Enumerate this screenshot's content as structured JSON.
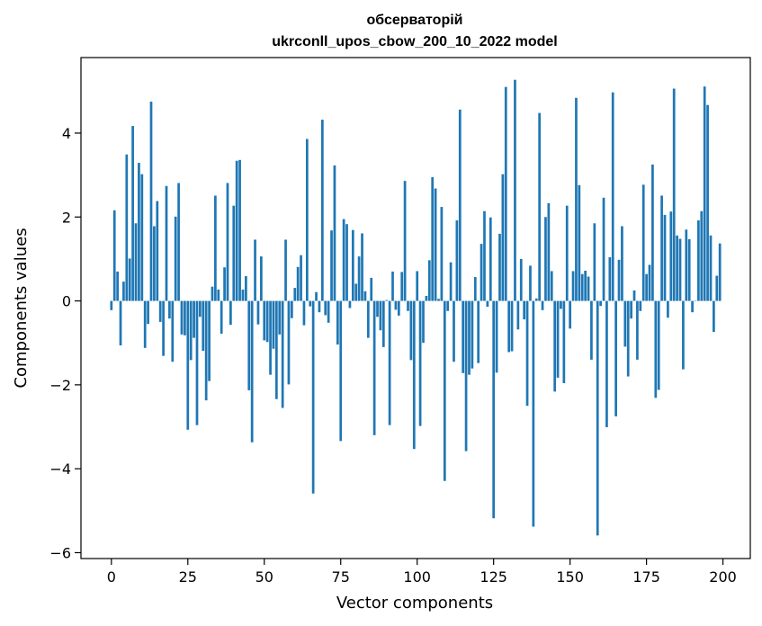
{
  "chart_data": {
    "type": "bar",
    "title_line1": "обсерваторій",
    "title_line2": "ukrconll_upos_cbow_200_10_2022 model",
    "xlabel": "Vector components",
    "ylabel": "Components values",
    "xlim": [
      -9.95,
      208.95
    ],
    "ylim": [
      -6.14,
      5.8
    ],
    "xticks": [
      0,
      25,
      50,
      75,
      100,
      125,
      150,
      175,
      200
    ],
    "yticks": [
      -6,
      -4,
      -2,
      0,
      2,
      4
    ],
    "ytick_labels": [
      "−6",
      "−4",
      "−2",
      "0",
      "2",
      "4"
    ],
    "grid": false,
    "legend": "none",
    "bar_color": "#1f77b4",
    "x": [
      0,
      1,
      2,
      3,
      4,
      5,
      6,
      7,
      8,
      9,
      10,
      11,
      12,
      13,
      14,
      15,
      16,
      17,
      18,
      19,
      20,
      21,
      22,
      23,
      24,
      25,
      26,
      27,
      28,
      29,
      30,
      31,
      32,
      33,
      34,
      35,
      36,
      37,
      38,
      39,
      40,
      41,
      42,
      43,
      44,
      45,
      46,
      47,
      48,
      49,
      50,
      51,
      52,
      53,
      54,
      55,
      56,
      57,
      58,
      59,
      60,
      61,
      62,
      63,
      64,
      65,
      66,
      67,
      68,
      69,
      70,
      71,
      72,
      73,
      74,
      75,
      76,
      77,
      78,
      79,
      80,
      81,
      82,
      83,
      84,
      85,
      86,
      87,
      88,
      89,
      90,
      91,
      92,
      93,
      94,
      95,
      96,
      97,
      98,
      99,
      100,
      101,
      102,
      103,
      104,
      105,
      106,
      107,
      108,
      109,
      110,
      111,
      112,
      113,
      114,
      115,
      116,
      117,
      118,
      119,
      120,
      121,
      122,
      123,
      124,
      125,
      126,
      127,
      128,
      129,
      130,
      131,
      132,
      133,
      134,
      135,
      136,
      137,
      138,
      139,
      140,
      141,
      142,
      143,
      144,
      145,
      146,
      147,
      148,
      149,
      150,
      151,
      152,
      153,
      154,
      155,
      156,
      157,
      158,
      159,
      160,
      161,
      162,
      163,
      164,
      165,
      166,
      167,
      168,
      169,
      170,
      171,
      172,
      173,
      174,
      175,
      176,
      177,
      178,
      179,
      180,
      181,
      182,
      183,
      184,
      185,
      186,
      187,
      188,
      189,
      190,
      191,
      192,
      193,
      194,
      195,
      196,
      197,
      198,
      199
    ],
    "values": [
      -0.22,
      2.16,
      0.7,
      -1.06,
      0.46,
      3.49,
      1.01,
      4.17,
      1.85,
      3.29,
      3.02,
      -1.12,
      -0.55,
      4.75,
      1.78,
      2.38,
      -0.5,
      -1.31,
      2.74,
      -0.42,
      -1.45,
      2.01,
      2.81,
      -0.8,
      -0.82,
      -3.07,
      -1.41,
      -0.88,
      -2.96,
      -0.38,
      -1.19,
      -2.37,
      -1.91,
      0.34,
      2.51,
      0.27,
      -0.78,
      0.8,
      2.81,
      -0.57,
      2.27,
      3.34,
      3.36,
      0.27,
      0.59,
      -2.13,
      -3.37,
      1.46,
      -0.56,
      1.06,
      -0.94,
      -0.98,
      -1.76,
      -1.14,
      -2.34,
      -0.8,
      -2.55,
      1.46,
      -1.99,
      -0.41,
      0.31,
      0.81,
      1.09,
      -0.58,
      3.86,
      -0.13,
      -4.59,
      0.21,
      -0.27,
      4.32,
      -0.34,
      -0.52,
      1.68,
      3.23,
      -1.04,
      -3.34,
      1.95,
      1.83,
      -0.17,
      1.69,
      0.41,
      1.06,
      1.61,
      0.23,
      -0.88,
      0.55,
      -3.2,
      -0.38,
      -0.7,
      -1.1,
      0.02,
      -2.96,
      0.7,
      -0.21,
      -0.35,
      0.69,
      2.86,
      -0.24,
      -1.41,
      -3.53,
      0.71,
      -2.98,
      -1.0,
      0.12,
      0.97,
      2.95,
      2.68,
      0.05,
      2.24,
      -4.29,
      -0.24,
      0.92,
      -1.45,
      1.92,
      4.56,
      -1.72,
      -3.58,
      -1.76,
      -1.61,
      0.57,
      -1.48,
      1.36,
      2.14,
      -0.14,
      1.99,
      -5.18,
      -1.71,
      1.6,
      3.02,
      5.1,
      -1.22,
      -1.2,
      5.27,
      -0.68,
      1.0,
      -0.44,
      -2.5,
      0.84,
      -5.38,
      0.06,
      4.48,
      -0.22,
      2.0,
      2.33,
      0.71,
      -2.16,
      -1.83,
      -0.19,
      -1.96,
      2.27,
      -0.66,
      0.71,
      4.84,
      2.76,
      0.64,
      0.72,
      0.58,
      -1.4,
      1.85,
      -5.59,
      -0.12,
      2.46,
      -3.01,
      1.04,
      4.97,
      -2.75,
      0.98,
      1.78,
      -1.09,
      -1.8,
      -0.42,
      0.25,
      -1.4,
      -0.24,
      2.77,
      0.64,
      0.86,
      3.25,
      -2.31,
      -2.12,
      2.51,
      2.05,
      -0.4,
      2.13,
      5.06,
      1.56,
      1.48,
      -1.63,
      1.7,
      1.47,
      -0.27,
      0.01,
      1.92,
      2.14,
      5.11,
      4.67,
      1.56,
      -0.74,
      0.6,
      1.37
    ]
  }
}
